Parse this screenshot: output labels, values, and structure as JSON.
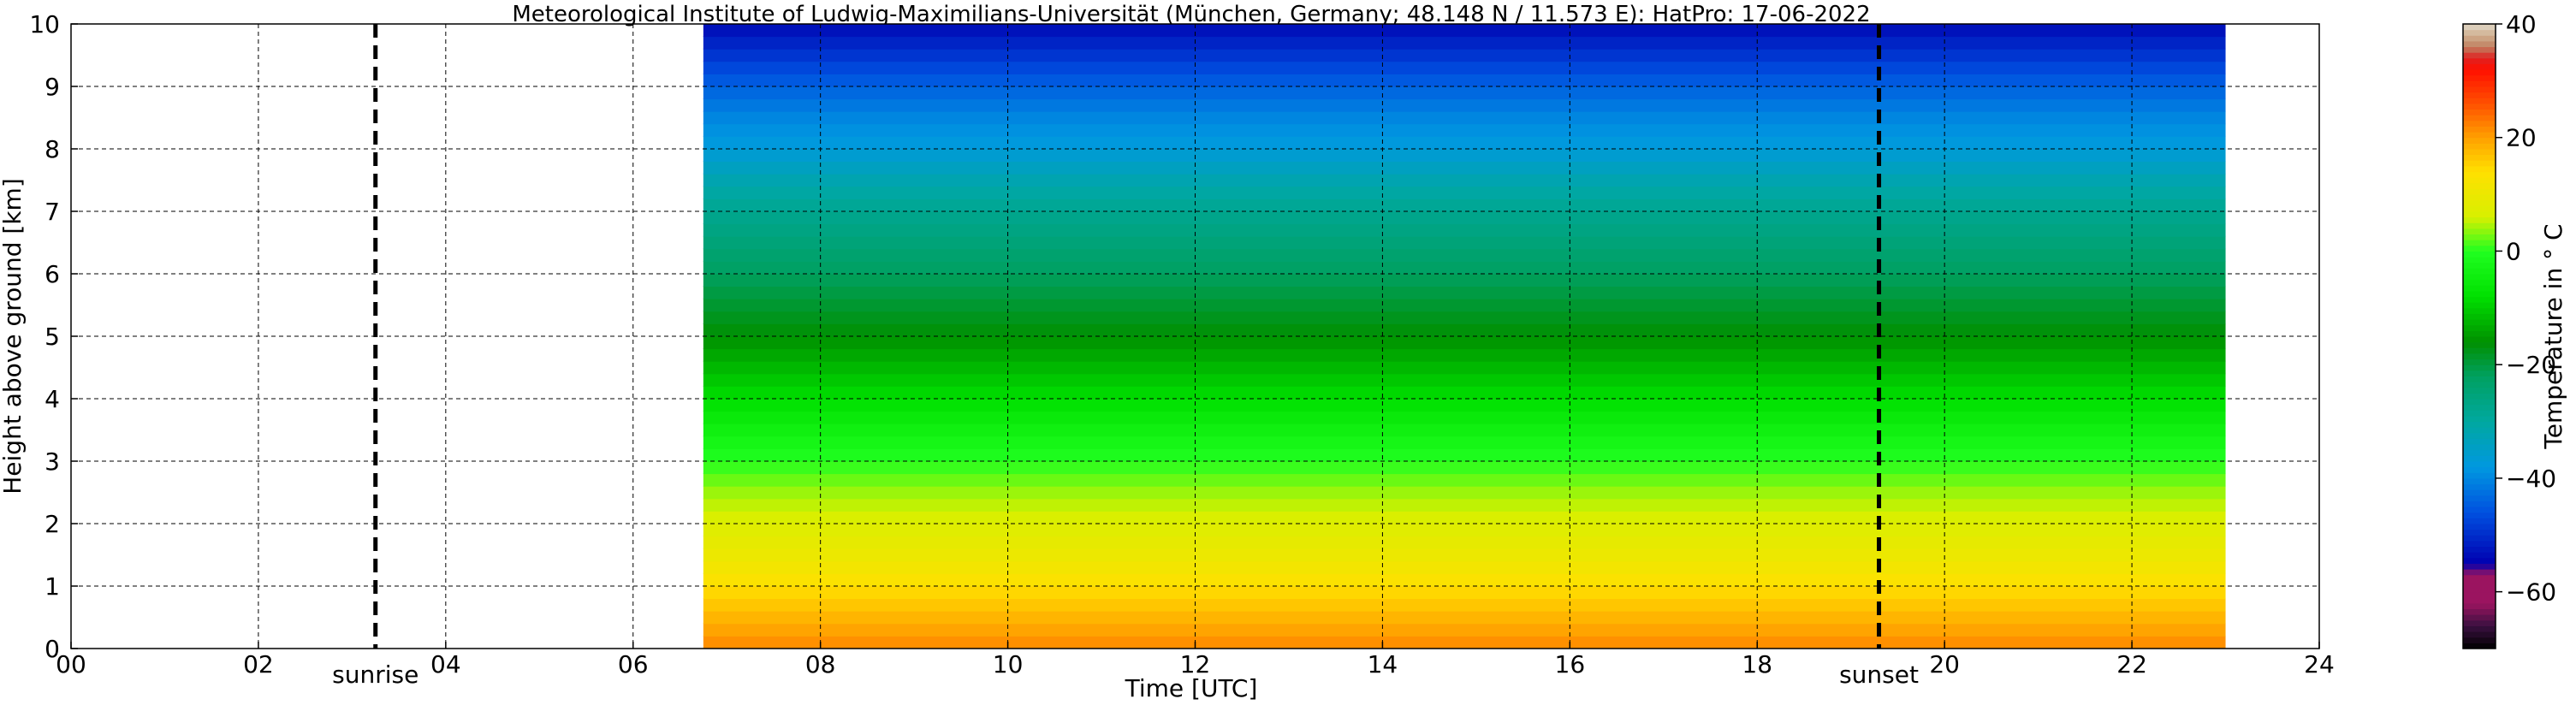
{
  "chart_data": {
    "type": "heatmap",
    "title": "Meteorological Institute of Ludwig-Maximilians-Universität (München, Germany; 48.148 N / 11.573 E):    HatPro: 17-06-2022",
    "xlabel": "Time [UTC]",
    "ylabel": "Height above ground [km]",
    "xlim": [
      0,
      24
    ],
    "ylim": [
      0,
      10
    ],
    "x_ticks": [
      "00",
      "02",
      "04",
      "06",
      "08",
      "10",
      "12",
      "14",
      "16",
      "18",
      "20",
      "22",
      "24"
    ],
    "y_ticks": [
      "0",
      "1",
      "2",
      "3",
      "4",
      "5",
      "6",
      "7",
      "8",
      "9",
      "10"
    ],
    "grid": true,
    "data_extent": {
      "time_start": 6.75,
      "time_end": 23.0
    },
    "temperature_profile": {
      "height_km": [
        0,
        0.5,
        1,
        1.5,
        2,
        2.5,
        3,
        3.5,
        4,
        4.5,
        5,
        5.5,
        6,
        6.5,
        7,
        7.5,
        8,
        8.5,
        9,
        9.5,
        10
      ],
      "temperature_c": [
        22,
        18,
        14,
        10,
        7,
        4,
        0,
        -4,
        -8,
        -12,
        -16,
        -19,
        -22,
        -25,
        -28,
        -32,
        -37,
        -40,
        -44,
        -49,
        -54
      ]
    },
    "annotations": [
      {
        "label": "sunrise",
        "time": 3.25
      },
      {
        "label": "sunset",
        "time": 19.3
      }
    ],
    "colorbar": {
      "label": "Temperature in $^\\circ$C",
      "label_display": "Temperature in ° C",
      "range": [
        -70,
        40
      ],
      "ticks": [
        "40",
        "20",
        "0",
        "−20",
        "−40",
        "−60"
      ],
      "tick_values": [
        40,
        20,
        0,
        -20,
        -40,
        -60
      ],
      "stops": [
        {
          "value": -70,
          "color": "#000000"
        },
        {
          "value": -66,
          "color": "#3a1040"
        },
        {
          "value": -62,
          "color": "#9b1460"
        },
        {
          "value": -57,
          "color": "#9b1460"
        },
        {
          "value": -55,
          "color": "#0000b0"
        },
        {
          "value": -46,
          "color": "#0050e0"
        },
        {
          "value": -38,
          "color": "#0098e0"
        },
        {
          "value": -30,
          "color": "#00a8a0"
        },
        {
          "value": -22,
          "color": "#00a060"
        },
        {
          "value": -16,
          "color": "#009000"
        },
        {
          "value": -8,
          "color": "#00e000"
        },
        {
          "value": 0,
          "color": "#20ff20"
        },
        {
          "value": 6,
          "color": "#d8f000"
        },
        {
          "value": 14,
          "color": "#ffe000"
        },
        {
          "value": 20,
          "color": "#ffa000"
        },
        {
          "value": 26,
          "color": "#ff5000"
        },
        {
          "value": 32,
          "color": "#ff1000"
        },
        {
          "value": 34,
          "color": "#e02020"
        },
        {
          "value": 36,
          "color": "#c08060"
        },
        {
          "value": 38,
          "color": "#d0b090"
        },
        {
          "value": 40,
          "color": "#e0d8c8"
        }
      ]
    }
  }
}
